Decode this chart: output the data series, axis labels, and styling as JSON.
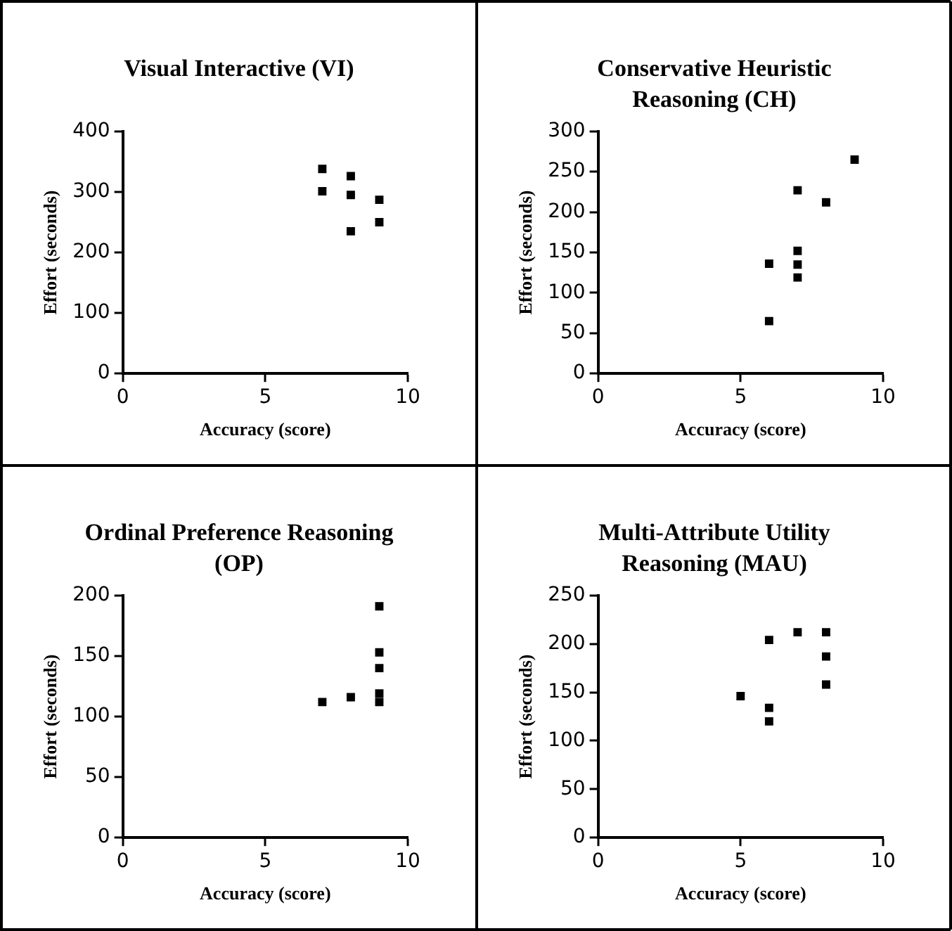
{
  "chart_data": [
    {
      "type": "scatter",
      "title": "Visual Interactive (VI)",
      "xlabel": "Accuracy (score)",
      "ylabel": "Effort (seconds)",
      "marker": "square",
      "color": "#000000",
      "x": [
        7,
        7,
        8,
        8,
        8,
        9,
        9
      ],
      "values": [
        338,
        301,
        326,
        295,
        235,
        287,
        250
      ],
      "xlim": [
        0,
        10
      ],
      "xticks": [
        0,
        5,
        10
      ],
      "ylim": [
        0,
        400
      ],
      "yticks": [
        0,
        100,
        200,
        300,
        400
      ]
    },
    {
      "type": "scatter",
      "title": "Conservative Heuristic Reasoning (CH)",
      "xlabel": "Accuracy (score)",
      "ylabel": "Effort (seconds)",
      "marker": "square",
      "color": "#000000",
      "x": [
        6,
        6,
        7,
        7,
        7,
        7,
        8,
        9
      ],
      "values": [
        136,
        65,
        227,
        152,
        135,
        119,
        212,
        265
      ],
      "xlim": [
        0,
        10
      ],
      "xticks": [
        0,
        5,
        10
      ],
      "ylim": [
        0,
        300
      ],
      "yticks": [
        0,
        50,
        100,
        150,
        200,
        250,
        300
      ]
    },
    {
      "type": "scatter",
      "title": "Ordinal Preference Reasoning (OP)",
      "xlabel": "Accuracy (score)",
      "ylabel": "Effort (seconds)",
      "marker": "square",
      "color": "#000000",
      "x": [
        7,
        8,
        9,
        9,
        9,
        9,
        9
      ],
      "values": [
        112,
        116,
        191,
        153,
        140,
        119,
        112
      ],
      "xlim": [
        0,
        10
      ],
      "xticks": [
        0,
        5,
        10
      ],
      "ylim": [
        0,
        200
      ],
      "yticks": [
        0,
        50,
        100,
        150,
        200
      ]
    },
    {
      "type": "scatter",
      "title": "Multi-Attribute Utility Reasoning (MAU)",
      "xlabel": "Accuracy (score)",
      "ylabel": "Effort (seconds)",
      "marker": "square",
      "color": "#000000",
      "x": [
        5,
        6,
        6,
        6,
        7,
        8,
        8,
        8
      ],
      "values": [
        146,
        204,
        134,
        120,
        212,
        212,
        187,
        158
      ],
      "xlim": [
        0,
        10
      ],
      "xticks": [
        0,
        5,
        10
      ],
      "ylim": [
        0,
        250
      ],
      "yticks": [
        0,
        50,
        100,
        150,
        200,
        250
      ]
    }
  ]
}
